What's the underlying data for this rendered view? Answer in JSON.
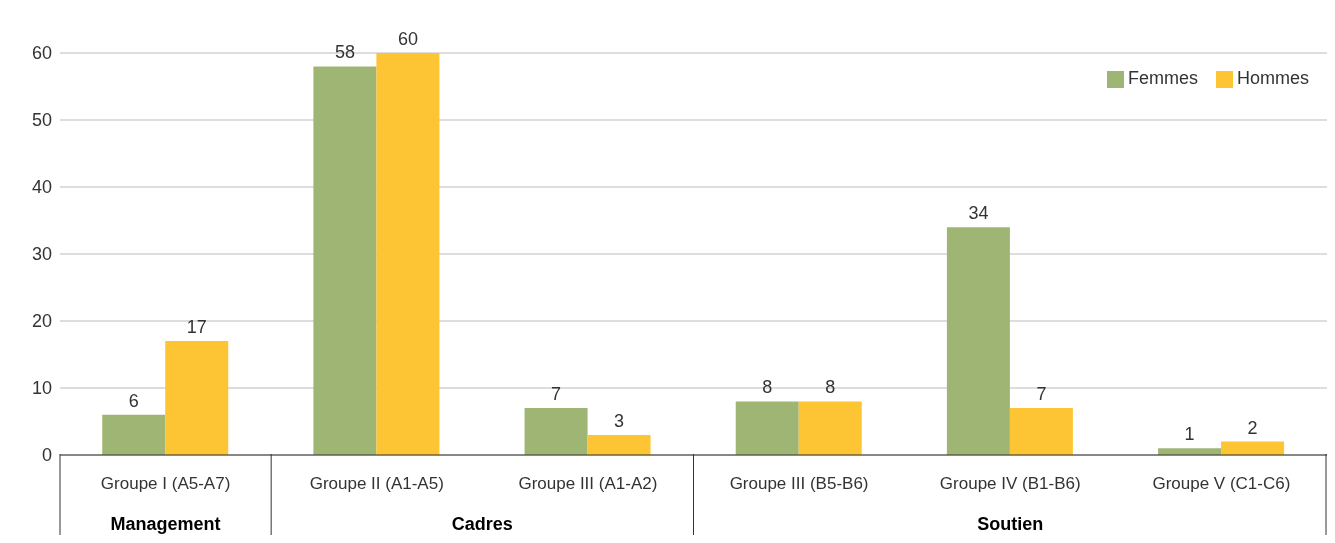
{
  "chart_data": {
    "type": "bar",
    "categories": [
      "Groupe I (A5-A7)",
      "Groupe II (A1-A5)",
      "Groupe III (A1-A2)",
      "Groupe III (B5-B6)",
      "Groupe IV (B1-B6)",
      "Groupe V (C1-C6)"
    ],
    "series": [
      {
        "name": "Femmes",
        "color": "#9fb574",
        "values": [
          6,
          58,
          7,
          8,
          34,
          1
        ]
      },
      {
        "name": "Hommes",
        "color": "#fdc433",
        "values": [
          17,
          60,
          3,
          8,
          7,
          2
        ]
      }
    ],
    "ylim": [
      0,
      60
    ],
    "yticks": [
      0,
      10,
      20,
      30,
      40,
      50,
      60
    ],
    "grid": "y",
    "legend": "top right",
    "data_labels": true,
    "annotations": [
      "Management",
      "Cadres",
      "Soutien"
    ]
  }
}
